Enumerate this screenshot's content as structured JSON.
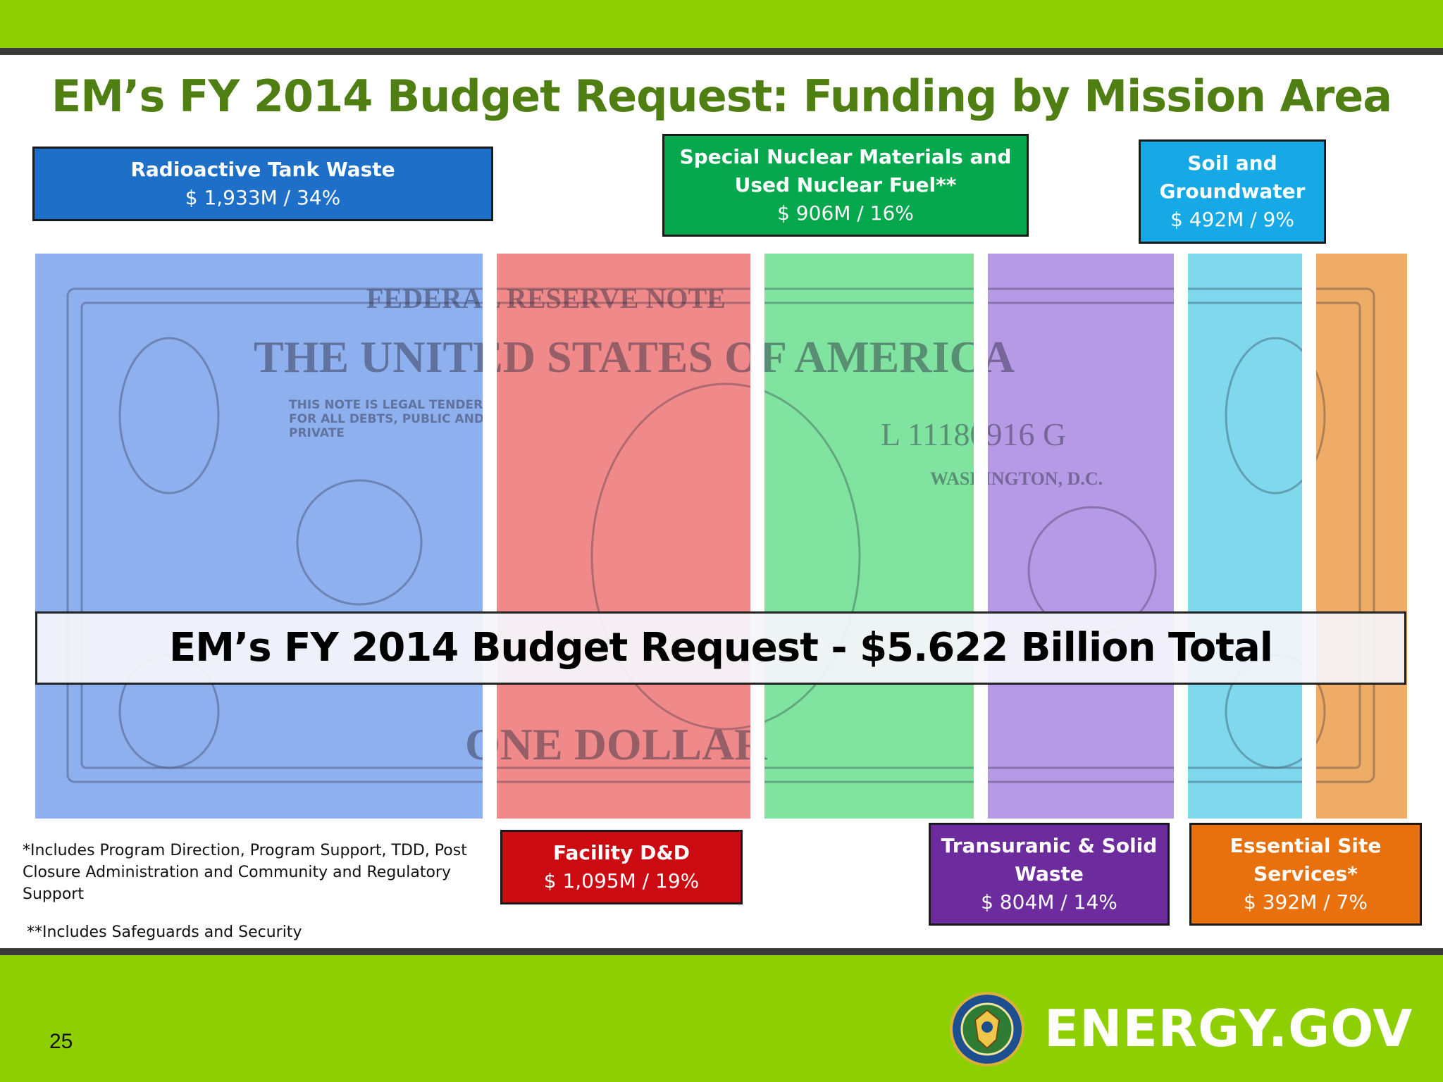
{
  "slide": {
    "title": "EM’s FY 2014 Budget Request:  Funding by Mission Area",
    "banner": "EM’s FY 2014 Budget Request - $5.622 Billion Total",
    "page_number": "25",
    "logo_text": "ENERGY.GOV"
  },
  "notes": {
    "note1": "*Includes Program Direction, Program Support, TDD, Post Closure Administration and Community and Regulatory Support",
    "note2": "**Includes Safeguards and Security"
  },
  "bill_text": {
    "top": "FEDERAL RESERVE NOTE",
    "mid": "THE UNITED STATES OF AMERICA",
    "bottom": "ONE DOLLAR",
    "serial": "L 11180916 G",
    "city": "WASHINGTON, D.C.",
    "legal": "THIS NOTE IS LEGAL TENDER FOR ALL DEBTS, PUBLIC AND PRIVATE"
  },
  "chart_data": {
    "type": "bar",
    "title": "EM’s FY 2014 Budget Request:  Funding by Mission Area",
    "total": "$5.622 Billion",
    "unit": "$M",
    "categories": [
      "Radioactive Tank Waste",
      "Facility D&D",
      "Special Nuclear Materials and Used Nuclear Fuel**",
      "Transuranic & Solid Waste",
      "Soil and Groundwater",
      "Essential Site Services*"
    ],
    "values": [
      1933,
      1095,
      906,
      804,
      492,
      392
    ],
    "percents": [
      34,
      19,
      16,
      14,
      9,
      7
    ],
    "labels": [
      "$ 1,933M / 34%",
      "$ 1,095M / 19%",
      "$ 906M / 16%",
      "$ 804M / 14%",
      "$ 492M / 9%",
      "$ 392M / 7%"
    ],
    "colors": [
      "#1e6fc7",
      "#cc0a12",
      "#06a84d",
      "#6d2c9e",
      "#16a9e6",
      "#e8700d"
    ],
    "strip_tints": [
      "#8fb0ee",
      "#f08a8a",
      "#80e3a0",
      "#b79ae6",
      "#7fd8ec",
      "#eeac66"
    ]
  }
}
